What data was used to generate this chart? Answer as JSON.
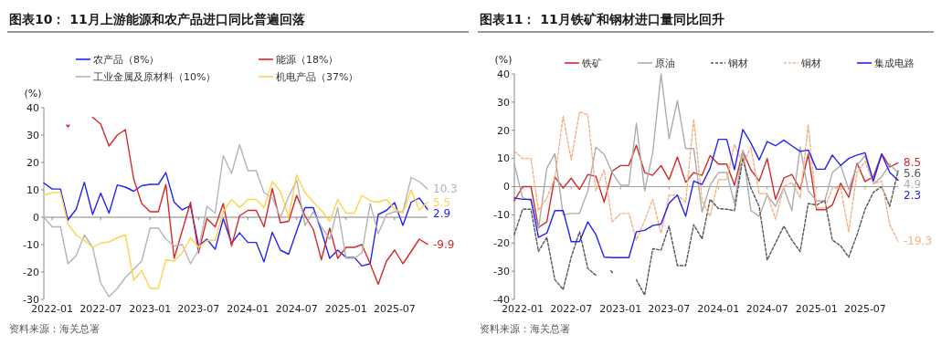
{
  "chart_data": [
    {
      "type": "line",
      "title": "图表10：  11月上游能源和农产品进口同比普遍回落",
      "ylabel": "(%)",
      "annotations": [
        "资料来源：海关总署"
      ],
      "legend": "top",
      "grid": false,
      "marker": "none",
      "x": [
        "2021-12",
        "2022-01",
        "2022-02",
        "2022-03",
        "2022-04",
        "2022-05",
        "2022-06",
        "2022-07",
        "2022-08",
        "2022-09",
        "2022-10",
        "2022-11",
        "2022-12",
        "2023-01",
        "2023-02",
        "2023-03",
        "2023-04",
        "2023-05",
        "2023-06",
        "2023-07",
        "2023-08",
        "2023-09",
        "2023-10",
        "2023-11",
        "2023-12",
        "2024-01",
        "2024-02",
        "2024-03",
        "2024-04",
        "2024-05",
        "2024-06",
        "2024-07",
        "2024-08",
        "2024-09",
        "2024-10",
        "2024-11",
        "2024-12",
        "2025-01",
        "2025-02",
        "2025-03",
        "2025-04",
        "2025-05",
        "2025-06",
        "2025-07",
        "2025-08",
        "2025-09",
        "2025-10",
        "2025-11"
      ],
      "xlim": [
        "2021-12",
        "2025-11"
      ],
      "xticks": [
        "2022-01",
        "2022-07",
        "2023-01",
        "2023-07",
        "2024-01",
        "2024-07",
        "2025-01",
        "2025-07"
      ],
      "ylim": [
        -30,
        40
      ],
      "yticks": [
        -30,
        -20,
        -10,
        0,
        10,
        20,
        30,
        40
      ],
      "ref_lines": [
        {
          "axis": "y",
          "value": 0,
          "color": "#808080"
        }
      ],
      "series": [
        {
          "name": "农产品（8%）",
          "color": "#2323f5",
          "values": [
            12.5,
            10.3,
            10.3,
            -1,
            3,
            12.8,
            1,
            8.8,
            1.5,
            11.8,
            11,
            9.5,
            11.5,
            12,
            12,
            16.3,
            5.5,
            2.7,
            4.2,
            -10.5,
            -8,
            -11.7,
            -0.5,
            -9.5,
            -5.7,
            -9.2,
            -9.2,
            -16.3,
            -5.5,
            -12,
            -13.5,
            -5,
            3.5,
            3.5,
            -5,
            -15,
            -12,
            -14.7,
            -14.7,
            -17.8,
            -17,
            1,
            2.5,
            5.3,
            -3,
            5.5,
            7,
            2.9
          ],
          "value_labels": [
            null,
            null,
            null,
            null,
            null,
            null,
            null,
            null,
            null,
            null,
            null,
            null,
            null,
            null,
            null,
            null,
            null,
            null,
            null,
            null,
            null,
            null,
            null,
            null,
            null,
            null,
            null,
            null,
            null,
            null,
            null,
            null,
            null,
            null,
            null,
            null,
            null,
            null,
            null,
            null,
            null,
            null,
            null,
            null,
            null,
            null,
            null,
            "2.9"
          ]
        },
        {
          "name": "能源（18%）",
          "color": "#d42a2a",
          "values": [
            null,
            null,
            null,
            33,
            null,
            null,
            36.5,
            34,
            26,
            30,
            32,
            14,
            5,
            2,
            2,
            12,
            -15,
            -5,
            5.5,
            -13,
            -0.5,
            -3.5,
            5,
            -10.5,
            0.5,
            2.5,
            2.5,
            -3.5,
            10.5,
            -2,
            -1.5,
            8,
            0.5,
            -4.5,
            -15.5,
            -4,
            -15,
            -11,
            -11,
            -10,
            -17,
            -24.5,
            -16,
            -12,
            -17,
            -12.5,
            -8,
            -9.9
          ],
          "value_labels": [
            null,
            null,
            null,
            null,
            null,
            null,
            null,
            null,
            null,
            null,
            null,
            null,
            null,
            null,
            null,
            null,
            null,
            null,
            null,
            null,
            null,
            null,
            null,
            null,
            null,
            null,
            null,
            null,
            null,
            null,
            null,
            null,
            null,
            null,
            null,
            null,
            null,
            null,
            null,
            null,
            null,
            null,
            null,
            null,
            null,
            null,
            null,
            "-9.9"
          ]
        },
        {
          "name": "工业金属及原材料（10%）",
          "color": "#b4b4b4",
          "values": [
            0,
            -3.5,
            -3.5,
            -17,
            -14,
            -6.5,
            -11,
            -24,
            -29,
            -26,
            -22,
            -19,
            -16,
            -4,
            -4,
            -8,
            -10.5,
            -10,
            -17,
            -12,
            4,
            1.5,
            22.5,
            16,
            26.5,
            17,
            17,
            9,
            7,
            0,
            7.5,
            13.5,
            -3,
            2,
            -3.5,
            -8,
            3.5,
            -15,
            -15,
            -13,
            5,
            -6,
            1,
            2,
            2,
            14.5,
            13,
            10.3
          ],
          "value_labels": [
            null,
            null,
            null,
            null,
            null,
            null,
            null,
            null,
            null,
            null,
            null,
            null,
            null,
            null,
            null,
            null,
            null,
            null,
            null,
            null,
            null,
            null,
            null,
            null,
            null,
            null,
            null,
            null,
            null,
            null,
            null,
            null,
            null,
            null,
            null,
            null,
            null,
            null,
            null,
            null,
            null,
            null,
            null,
            null,
            null,
            null,
            null,
            "10.3"
          ]
        },
        {
          "name": "机电产品（37%）",
          "color": "#ffd24d",
          "values": [
            8,
            9,
            9,
            -2.5,
            -6.5,
            -8.5,
            -11,
            -9.5,
            -9,
            -7.5,
            -6.5,
            -23,
            -19.5,
            -26,
            -26,
            -15.5,
            -16,
            -13,
            -7.5,
            -11,
            -8.5,
            -8.5,
            2,
            6.5,
            3.5,
            6.5,
            6.5,
            3.5,
            13,
            9.5,
            0,
            15.5,
            9,
            5.5,
            2.5,
            -1.5,
            6.5,
            1.5,
            1.5,
            8,
            6,
            5.5,
            6.5,
            3,
            1.5,
            10,
            2.5,
            5.5
          ],
          "value_labels": [
            null,
            null,
            null,
            null,
            null,
            null,
            null,
            null,
            null,
            null,
            null,
            null,
            null,
            null,
            null,
            null,
            null,
            null,
            null,
            null,
            null,
            null,
            null,
            null,
            null,
            null,
            null,
            null,
            null,
            null,
            null,
            null,
            null,
            null,
            null,
            null,
            null,
            null,
            null,
            null,
            null,
            null,
            null,
            null,
            null,
            null,
            null,
            "5.5"
          ]
        }
      ]
    },
    {
      "type": "line",
      "title": "图表11：  11月铁矿和钢材进口量同比回升",
      "ylabel": "(%)",
      "annotations": [
        "资料来源：海关总署"
      ],
      "legend": "top",
      "grid": false,
      "marker": "none",
      "x": [
        "2021-12",
        "2022-01",
        "2022-02",
        "2022-03",
        "2022-04",
        "2022-05",
        "2022-06",
        "2022-07",
        "2022-08",
        "2022-09",
        "2022-10",
        "2022-11",
        "2022-12",
        "2023-01",
        "2023-02",
        "2023-03",
        "2023-04",
        "2023-05",
        "2023-06",
        "2023-07",
        "2023-08",
        "2023-09",
        "2023-10",
        "2023-11",
        "2023-12",
        "2024-01",
        "2024-02",
        "2024-03",
        "2024-04",
        "2024-05",
        "2024-06",
        "2024-07",
        "2024-08",
        "2024-09",
        "2024-10",
        "2024-11",
        "2024-12",
        "2025-01",
        "2025-02",
        "2025-03",
        "2025-04",
        "2025-05",
        "2025-06",
        "2025-07",
        "2025-08",
        "2025-09",
        "2025-10",
        "2025-11"
      ],
      "xlim": [
        "2021-12",
        "2025-11"
      ],
      "xticks": [
        "2022-01",
        "2022-07",
        "2023-01",
        "2023-07",
        "2024-01",
        "2024-07",
        "2025-01",
        "2025-07"
      ],
      "ylim": [
        -40,
        40
      ],
      "yticks": [
        -40,
        -30,
        -20,
        -10,
        0,
        10,
        20,
        30,
        40
      ],
      "ref_lines": [
        {
          "axis": "y",
          "value": 0,
          "color": "#a0a0a0"
        }
      ],
      "series": [
        {
          "name": "铁矿",
          "color": "#d02c2c",
          "line_style": "solid",
          "values": [
            -5,
            0,
            0,
            -14.5,
            -12.5,
            3.5,
            -0.5,
            3,
            -1,
            4.3,
            3.7,
            -5.5,
            5.5,
            7.5,
            7.5,
            14.7,
            5,
            4,
            7.5,
            2.5,
            10.5,
            1.5,
            5,
            4,
            11,
            8,
            8,
            0.5,
            12.5,
            6,
            2,
            10,
            -4.5,
            3,
            4.3,
            -1,
            11.5,
            -8.2,
            -8.2,
            -6.5,
            1.2,
            -3.8,
            8.3,
            1.8,
            3.5,
            11.7,
            7,
            8.5
          ],
          "value_labels": [
            null,
            null,
            null,
            null,
            null,
            null,
            null,
            null,
            null,
            null,
            null,
            null,
            null,
            null,
            null,
            null,
            null,
            null,
            null,
            null,
            null,
            null,
            null,
            null,
            null,
            null,
            null,
            null,
            null,
            null,
            null,
            null,
            null,
            null,
            null,
            null,
            null,
            null,
            null,
            null,
            null,
            null,
            null,
            null,
            null,
            null,
            null,
            "8.5"
          ]
        },
        {
          "name": "原油",
          "color": "#acacac",
          "line_style": "solid",
          "values": [
            8,
            -4,
            -5,
            -15,
            6.5,
            11.7,
            -10,
            -9.5,
            -9.5,
            -1.5,
            14,
            11.5,
            5,
            0.5,
            0.5,
            22.5,
            -1.5,
            12,
            40,
            17,
            30.5,
            13.5,
            13.5,
            -9,
            0.5,
            5,
            5,
            -6,
            13,
            -8.5,
            -10.5,
            -3,
            -7,
            -0.5,
            -8.5,
            14,
            -1.5,
            -5,
            -5,
            5,
            7.5,
            -1,
            7.5,
            11,
            1,
            3.5,
            8,
            4.9
          ],
          "value_labels": [
            null,
            null,
            null,
            null,
            null,
            null,
            null,
            null,
            null,
            null,
            null,
            null,
            null,
            null,
            null,
            null,
            null,
            null,
            null,
            null,
            null,
            null,
            null,
            null,
            null,
            null,
            null,
            null,
            null,
            null,
            null,
            null,
            null,
            null,
            null,
            null,
            null,
            null,
            null,
            null,
            null,
            null,
            null,
            null,
            null,
            null,
            null,
            "4.9"
          ]
        },
        {
          "name": "钢材",
          "color": "#555555",
          "line_style": "dotted",
          "values": [
            -17,
            -8,
            -8,
            -23,
            -18,
            -33,
            -36.5,
            -25,
            -16,
            -29,
            -31.5,
            null,
            -30.5,
            null,
            null,
            -33,
            -38.5,
            -22,
            -22.5,
            -14,
            -28,
            -28,
            -13.5,
            -18.5,
            -4.5,
            -7.8,
            -8,
            -8.5,
            10,
            -0.5,
            -7,
            -26,
            -20,
            -14,
            -19,
            -23,
            -6,
            -6.5,
            -5,
            -19,
            -21,
            -25,
            -17,
            -8,
            -2,
            0,
            -7,
            5.6
          ],
          "value_labels": [
            null,
            null,
            null,
            null,
            null,
            null,
            null,
            null,
            null,
            null,
            null,
            null,
            null,
            null,
            null,
            null,
            null,
            null,
            null,
            null,
            null,
            null,
            null,
            null,
            null,
            null,
            null,
            null,
            null,
            null,
            null,
            null,
            null,
            null,
            null,
            null,
            null,
            null,
            null,
            null,
            null,
            null,
            null,
            null,
            null,
            null,
            null,
            "5.6"
          ]
        },
        {
          "name": "铜材",
          "color": "#f4b183",
          "line_style": "dotted",
          "values": [
            12.5,
            10,
            10,
            -8.5,
            -4,
            3,
            25,
            9.5,
            26.5,
            25.5,
            -1.5,
            6,
            -12.5,
            -9.5,
            -9.5,
            -19,
            -12,
            -4.5,
            -16.5,
            -3,
            -3,
            -5.5,
            24,
            -5,
            -10.5,
            2.5,
            2.5,
            15,
            8,
            14,
            -2.5,
            -2.5,
            -11.5,
            0,
            1.5,
            -4,
            22,
            -7.5,
            -7.5,
            -0.5,
            -0.5,
            -16,
            5,
            9,
            1,
            2,
            -13.5,
            -19.3
          ],
          "value_labels": [
            null,
            null,
            null,
            null,
            null,
            null,
            null,
            null,
            null,
            null,
            null,
            null,
            null,
            null,
            null,
            null,
            null,
            null,
            null,
            null,
            null,
            null,
            null,
            null,
            null,
            null,
            null,
            null,
            null,
            null,
            null,
            null,
            null,
            null,
            null,
            null,
            null,
            null,
            null,
            null,
            null,
            null,
            null,
            null,
            null,
            null,
            null,
            "-19.3"
          ]
        },
        {
          "name": "集成电路",
          "color": "#2323f5",
          "line_style": "solid",
          "values": [
            -4,
            -4.5,
            -4.5,
            -18,
            -16.5,
            -8.5,
            -8.5,
            -19.5,
            -19.5,
            -12.5,
            -17,
            -25,
            -25.2,
            -25.2,
            -25.2,
            -16,
            -15.5,
            -13.8,
            -13.3,
            -5.8,
            -3,
            -10.5,
            2,
            0.8,
            6.5,
            16.8,
            16.8,
            6,
            20.3,
            15.5,
            9.5,
            16,
            14.5,
            16.5,
            14.5,
            12.5,
            13,
            6.2,
            6.2,
            11.2,
            7.5,
            10,
            11.2,
            12,
            2,
            11.5,
            5,
            2.3
          ],
          "value_labels": [
            null,
            null,
            null,
            null,
            null,
            null,
            null,
            null,
            null,
            null,
            null,
            null,
            null,
            null,
            null,
            null,
            null,
            null,
            null,
            null,
            null,
            null,
            null,
            null,
            null,
            null,
            null,
            null,
            null,
            null,
            null,
            null,
            null,
            null,
            null,
            null,
            null,
            null,
            null,
            null,
            null,
            null,
            null,
            null,
            null,
            null,
            null,
            "2.3"
          ]
        }
      ]
    }
  ]
}
